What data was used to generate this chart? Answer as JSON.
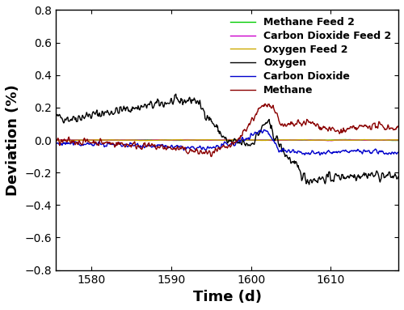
{
  "title": "",
  "xlabel": "Time (d)",
  "ylabel": "Deviation (%)",
  "xlim": [
    1575.5,
    1618.5
  ],
  "ylim": [
    -0.8,
    0.8
  ],
  "xticks": [
    1580,
    1590,
    1600,
    1610
  ],
  "yticks": [
    -0.8,
    -0.6,
    -0.4,
    -0.2,
    0.0,
    0.2,
    0.4,
    0.6,
    0.8
  ],
  "legend_entries": [
    {
      "label": "Methane Feed 2",
      "color": "#00cc00"
    },
    {
      "label": "Carbon Dioxide Feed 2",
      "color": "#cc00cc"
    },
    {
      "label": "Oxygen Feed 2",
      "color": "#ccaa00"
    },
    {
      "label": "Oxygen",
      "color": "#000000"
    },
    {
      "label": "Carbon Dioxide",
      "color": "#0000cc"
    },
    {
      "label": "Methane",
      "color": "#8b0000"
    }
  ],
  "line_width": 1.0,
  "tick_font_size": 10,
  "legend_font_size": 9,
  "axis_label_font_size": 13
}
